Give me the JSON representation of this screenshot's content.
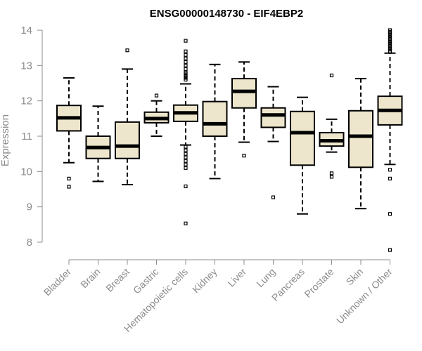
{
  "chart_data": {
    "type": "boxplot",
    "title": "ENSG00000148730 - EIF4EBP2",
    "xlabel": "",
    "ylabel": "Expression",
    "ylim": [
      7.9,
      14.1
    ],
    "yticks": [
      8,
      9,
      10,
      11,
      12,
      13,
      14
    ],
    "grid": false,
    "colors": {
      "box_fill": "#ede6cd",
      "stroke": "#000000",
      "axis": "#8c8c8c",
      "text": "#8c8c8c"
    },
    "categories": [
      "Bladder",
      "Brain",
      "Breast",
      "Gastric",
      "Hematopoietic cells",
      "Kidney",
      "Liver",
      "Lung",
      "Pancreas",
      "Prostate",
      "Skin",
      "Unknown / Other"
    ],
    "boxes": [
      {
        "name": "Bladder",
        "whisker_low": 10.25,
        "q1": 11.15,
        "median": 11.52,
        "q3": 11.87,
        "whisker_high": 12.65,
        "outliers": [
          9.8,
          9.57
        ]
      },
      {
        "name": "Brain",
        "whisker_low": 9.72,
        "q1": 10.37,
        "median": 10.68,
        "q3": 11.0,
        "whisker_high": 11.85,
        "outliers": []
      },
      {
        "name": "Breast",
        "whisker_low": 9.63,
        "q1": 10.37,
        "median": 10.72,
        "q3": 11.4,
        "whisker_high": 12.9,
        "outliers": [
          13.43
        ]
      },
      {
        "name": "Gastric",
        "whisker_low": 11.0,
        "q1": 11.38,
        "median": 11.5,
        "q3": 11.68,
        "whisker_high": 12.0,
        "outliers": [
          12.15
        ]
      },
      {
        "name": "Hematopoietic cells",
        "whisker_low": 10.75,
        "q1": 11.42,
        "median": 11.66,
        "q3": 11.88,
        "whisker_high": 12.48,
        "outliers": [
          13.7,
          13.4,
          13.3,
          13.2,
          13.1,
          13.0,
          12.9,
          12.8,
          12.75,
          12.7,
          12.65,
          12.6,
          10.7,
          10.6,
          10.5,
          10.4,
          10.3,
          10.2,
          10.1,
          9.58,
          8.53
        ]
      },
      {
        "name": "Kidney",
        "whisker_low": 9.8,
        "q1": 11.0,
        "median": 11.35,
        "q3": 11.98,
        "whisker_high": 13.03,
        "outliers": []
      },
      {
        "name": "Liver",
        "whisker_low": 10.83,
        "q1": 11.8,
        "median": 12.27,
        "q3": 12.63,
        "whisker_high": 13.1,
        "outliers": [
          10.45
        ]
      },
      {
        "name": "Lung",
        "whisker_low": 10.85,
        "q1": 11.25,
        "median": 11.6,
        "q3": 11.8,
        "whisker_high": 12.4,
        "outliers": [
          9.27
        ]
      },
      {
        "name": "Pancreas",
        "whisker_low": 8.8,
        "q1": 10.18,
        "median": 11.1,
        "q3": 11.7,
        "whisker_high": 12.1,
        "outliers": []
      },
      {
        "name": "Prostate",
        "whisker_low": 10.55,
        "q1": 10.72,
        "median": 10.87,
        "q3": 11.1,
        "whisker_high": 11.48,
        "outliers": [
          12.72,
          9.95,
          9.85
        ]
      },
      {
        "name": "Skin",
        "whisker_low": 8.95,
        "q1": 10.12,
        "median": 11.0,
        "q3": 11.72,
        "whisker_high": 12.63,
        "outliers": []
      },
      {
        "name": "Unknown / Other",
        "whisker_low": 10.2,
        "q1": 11.32,
        "median": 11.73,
        "q3": 12.13,
        "whisker_high": 13.35,
        "outliers": [
          14.0,
          13.95,
          13.9,
          13.85,
          13.8,
          13.75,
          13.7,
          13.65,
          13.6,
          13.55,
          13.5,
          13.45,
          13.4,
          10.05,
          9.8,
          8.8,
          7.78
        ]
      }
    ]
  }
}
